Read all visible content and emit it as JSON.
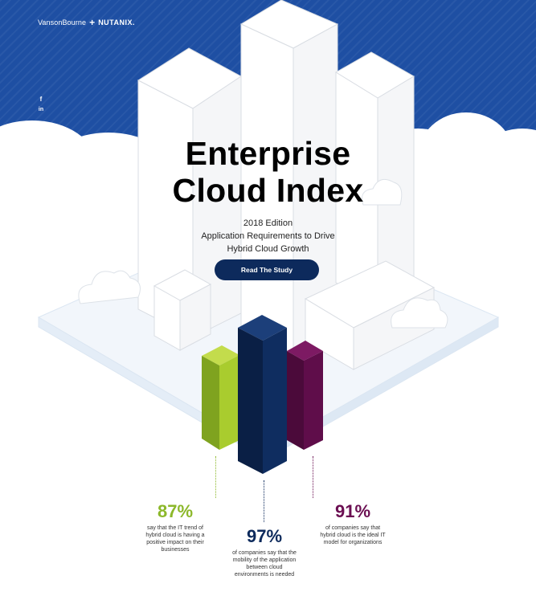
{
  "header": {
    "logo_left": "VansonBourne",
    "logo_plus": "+",
    "logo_right": "NUTANIX."
  },
  "social": {
    "items": [
      {
        "icon": "facebook-icon",
        "glyph": "f"
      },
      {
        "icon": "linkedin-icon",
        "glyph": "in"
      }
    ]
  },
  "hero": {
    "title_line1": "Enterprise",
    "title_line2": "Cloud Index",
    "edition": "2018 Edition",
    "subtitle_line1": "Application Requirements to Drive",
    "subtitle_line2": "Hybrid Cloud Growth",
    "cta_label": "Read The Study"
  },
  "colors": {
    "sky": "#1e4fa3",
    "green": "#8cb82a",
    "navy": "#0d2a5c",
    "purple": "#6b0f52"
  },
  "stats": {
    "left": {
      "value": "87%",
      "desc_l1": "say that the IT trend of",
      "desc_l2": "hybrid cloud is having a",
      "desc_l3": "positive impact on their",
      "desc_l4": "businesses"
    },
    "center": {
      "value": "97%",
      "desc_l1": "of companies say that the",
      "desc_l2": "mobility of the application",
      "desc_l3": "between cloud",
      "desc_l4": "environments is needed"
    },
    "right": {
      "value": "91%",
      "desc_l1": "of companies say that",
      "desc_l2": "hybrid cloud is the ideal IT",
      "desc_l3": "model for organizations"
    }
  }
}
